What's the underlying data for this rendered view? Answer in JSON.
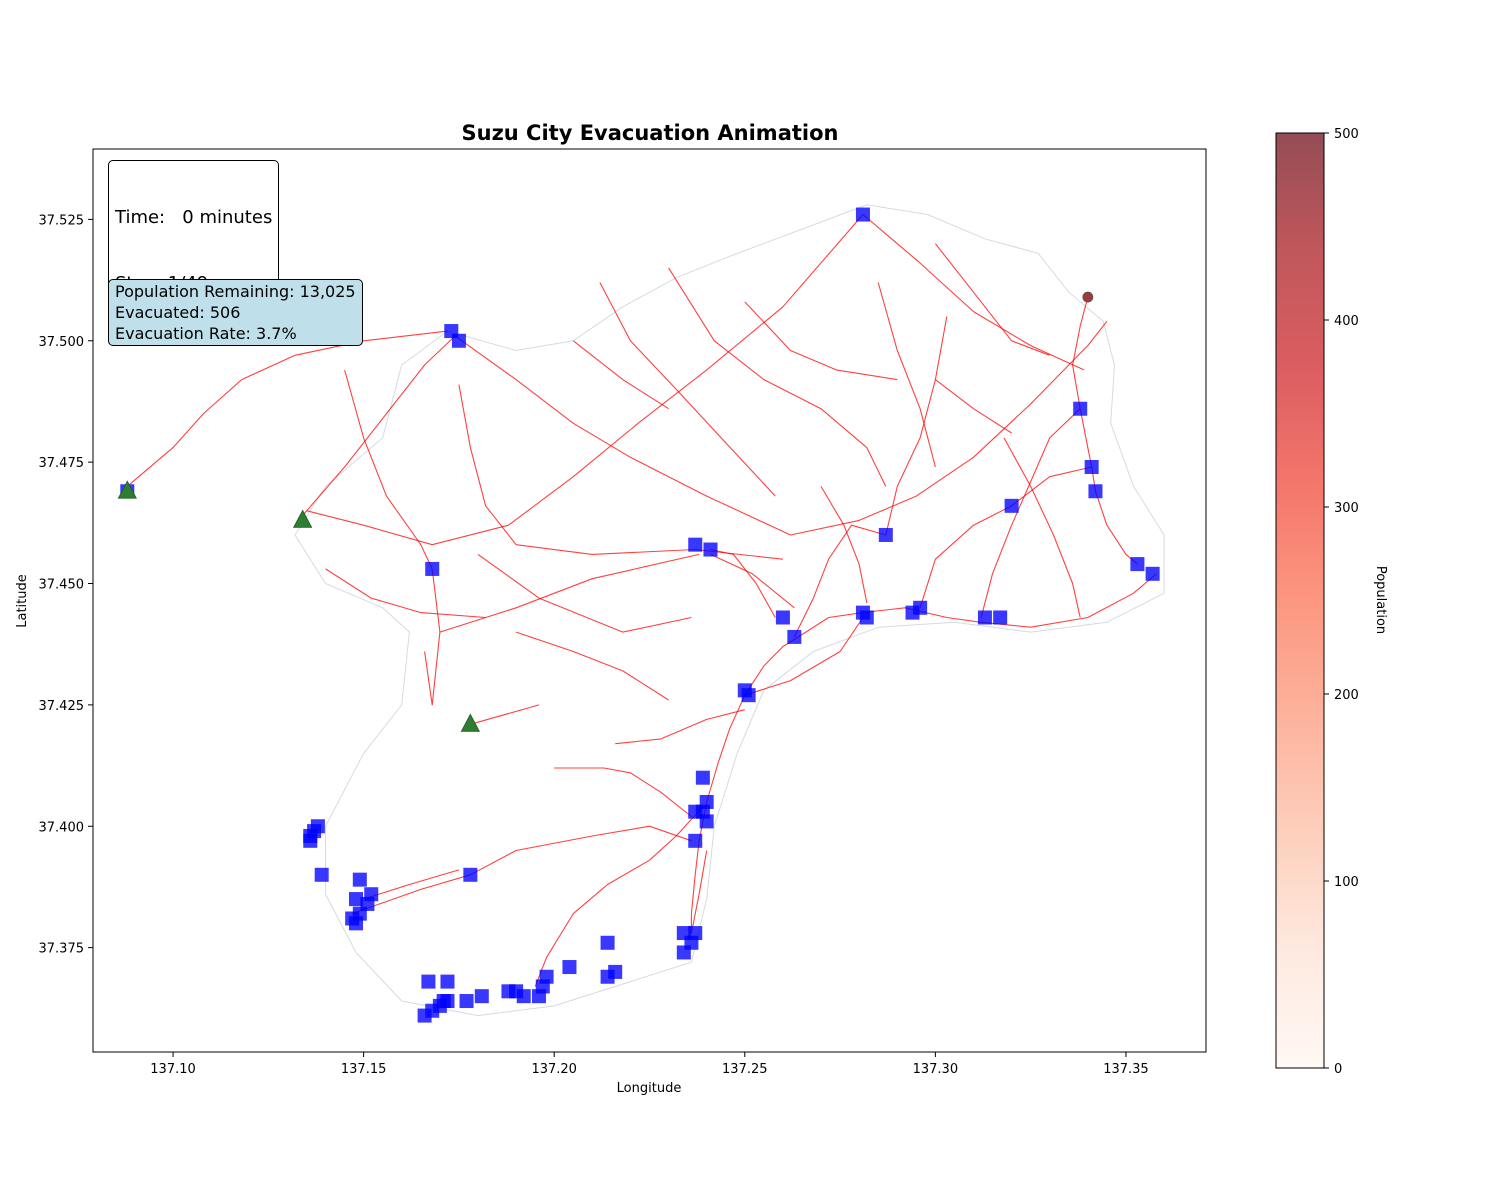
{
  "chart_data": {
    "type": "scatter",
    "title": "Suzu City Evacuation Animation",
    "xlabel": "Longitude",
    "ylabel": "Latitude",
    "xlim": [
      137.079,
      137.371
    ],
    "ylim": [
      37.3535,
      37.5395
    ],
    "x_ticks": [
      137.1,
      137.15,
      137.2,
      137.25,
      137.3,
      137.35
    ],
    "x_tick_labels": [
      "137.10",
      "137.15",
      "137.20",
      "137.25",
      "137.30",
      "137.35"
    ],
    "y_ticks": [
      37.375,
      37.4,
      37.425,
      37.45,
      37.475,
      37.5,
      37.525
    ],
    "y_tick_labels": [
      "37.375",
      "37.400",
      "37.425",
      "37.450",
      "37.475",
      "37.500",
      "37.525"
    ],
    "grid": false,
    "colorbar": {
      "label": "Population",
      "range": [
        0,
        500
      ],
      "ticks": [
        0,
        100,
        200,
        300,
        400,
        500
      ],
      "tick_labels": [
        "0",
        "100",
        "200",
        "300",
        "400",
        "500"
      ],
      "colormap": "Reds"
    },
    "colors": {
      "roads": "#ff0000",
      "shelters": "#0000ff",
      "exits": "#2e7d32",
      "population_point": "#a03a3a",
      "region_outline": "#d4dbe2"
    },
    "road_network": [
      [
        [
          137.088,
          37.47
        ],
        [
          137.1,
          37.478
        ],
        [
          137.108,
          37.485
        ],
        [
          137.118,
          37.492
        ],
        [
          137.132,
          37.497
        ],
        [
          137.15,
          37.5
        ],
        [
          137.172,
          37.502
        ]
      ],
      [
        [
          137.134,
          37.464
        ],
        [
          137.145,
          37.474
        ],
        [
          137.156,
          37.485
        ],
        [
          137.166,
          37.495
        ],
        [
          137.174,
          37.501
        ]
      ],
      [
        [
          137.174,
          37.501
        ],
        [
          137.19,
          37.492
        ],
        [
          137.205,
          37.483
        ],
        [
          137.22,
          37.476
        ],
        [
          137.24,
          37.468
        ],
        [
          137.262,
          37.46
        ],
        [
          137.28,
          37.463
        ],
        [
          137.295,
          37.468
        ],
        [
          137.31,
          37.476
        ],
        [
          137.325,
          37.487
        ],
        [
          137.34,
          37.499
        ],
        [
          137.345,
          37.504
        ]
      ],
      [
        [
          137.135,
          37.465
        ],
        [
          137.15,
          37.462
        ],
        [
          137.168,
          37.458
        ],
        [
          137.188,
          37.462
        ],
        [
          137.205,
          37.472
        ],
        [
          137.222,
          37.483
        ],
        [
          137.24,
          37.494
        ],
        [
          137.26,
          37.507
        ],
        [
          137.281,
          37.526
        ]
      ],
      [
        [
          137.281,
          37.526
        ],
        [
          137.296,
          37.516
        ],
        [
          137.31,
          37.506
        ],
        [
          137.325,
          37.499
        ],
        [
          137.339,
          37.494
        ]
      ],
      [
        [
          137.145,
          37.494
        ],
        [
          137.15,
          37.48
        ],
        [
          137.156,
          37.468
        ],
        [
          137.165,
          37.458
        ],
        [
          137.168,
          37.453
        ]
      ],
      [
        [
          137.175,
          37.491
        ],
        [
          137.178,
          37.478
        ],
        [
          137.182,
          37.466
        ],
        [
          137.19,
          37.458
        ],
        [
          137.21,
          37.456
        ],
        [
          137.237,
          37.457
        ],
        [
          137.26,
          37.455
        ]
      ],
      [
        [
          137.168,
          37.453
        ],
        [
          137.17,
          37.44
        ],
        [
          137.168,
          37.425
        ],
        [
          137.166,
          37.436
        ]
      ],
      [
        [
          137.17,
          37.44
        ],
        [
          137.19,
          37.445
        ],
        [
          137.21,
          37.451
        ],
        [
          137.238,
          37.456
        ]
      ],
      [
        [
          137.18,
          37.456
        ],
        [
          137.196,
          37.447
        ],
        [
          137.218,
          37.44
        ],
        [
          137.236,
          37.443
        ]
      ],
      [
        [
          137.14,
          37.453
        ],
        [
          137.152,
          37.447
        ],
        [
          137.165,
          37.444
        ],
        [
          137.182,
          37.443
        ]
      ],
      [
        [
          137.19,
          37.44
        ],
        [
          137.205,
          37.436
        ],
        [
          137.218,
          37.432
        ],
        [
          137.23,
          37.426
        ]
      ],
      [
        [
          137.241,
          37.456
        ],
        [
          137.252,
          37.452
        ],
        [
          137.263,
          37.445
        ]
      ],
      [
        [
          137.25,
          37.427
        ],
        [
          137.255,
          37.433
        ],
        [
          137.26,
          37.437
        ],
        [
          137.266,
          37.44
        ],
        [
          137.272,
          37.443
        ],
        [
          137.281,
          37.444
        ],
        [
          137.292,
          37.445
        ],
        [
          137.303,
          37.443
        ],
        [
          137.312,
          37.442
        ],
        [
          137.325,
          37.441
        ],
        [
          137.34,
          37.443
        ],
        [
          137.352,
          37.448
        ],
        [
          137.358,
          37.452
        ]
      ],
      [
        [
          137.25,
          37.427
        ],
        [
          137.246,
          37.42
        ],
        [
          137.243,
          37.413
        ],
        [
          137.24,
          37.405
        ],
        [
          137.238,
          37.397
        ],
        [
          137.237,
          37.39
        ],
        [
          137.236,
          37.382
        ],
        [
          137.236,
          37.378
        ]
      ],
      [
        [
          137.239,
          37.404
        ],
        [
          137.232,
          37.398
        ],
        [
          137.225,
          37.393
        ],
        [
          137.214,
          37.388
        ],
        [
          137.205,
          37.382
        ],
        [
          137.198,
          37.373
        ],
        [
          137.195,
          37.367
        ]
      ],
      [
        [
          137.236,
          37.402
        ],
        [
          137.228,
          37.407
        ],
        [
          137.22,
          37.411
        ],
        [
          137.213,
          37.412
        ],
        [
          137.2,
          37.412
        ]
      ],
      [
        [
          137.147,
          37.382
        ],
        [
          137.165,
          37.387
        ],
        [
          137.178,
          37.39
        ],
        [
          137.19,
          37.395
        ],
        [
          137.21,
          37.398
        ],
        [
          137.225,
          37.4
        ],
        [
          137.236,
          37.397
        ]
      ],
      [
        [
          137.15,
          37.385
        ],
        [
          137.162,
          37.388
        ],
        [
          137.175,
          37.391
        ]
      ],
      [
        [
          137.178,
          37.421
        ],
        [
          137.196,
          37.425
        ]
      ],
      [
        [
          137.263,
          37.439
        ],
        [
          137.268,
          37.447
        ],
        [
          137.272,
          37.455
        ],
        [
          137.278,
          37.462
        ],
        [
          137.287,
          37.46
        ]
      ],
      [
        [
          137.287,
          37.46
        ],
        [
          137.29,
          37.47
        ],
        [
          137.296,
          37.48
        ],
        [
          137.3,
          37.492
        ],
        [
          137.303,
          37.505
        ]
      ],
      [
        [
          137.296,
          37.445
        ],
        [
          137.3,
          37.455
        ],
        [
          137.31,
          37.462
        ],
        [
          137.32,
          37.466
        ],
        [
          137.33,
          37.472
        ],
        [
          137.341,
          37.474
        ]
      ],
      [
        [
          137.338,
          37.486
        ],
        [
          137.34,
          37.478
        ],
        [
          137.341,
          37.474
        ],
        [
          137.342,
          37.469
        ],
        [
          137.345,
          37.462
        ],
        [
          137.35,
          37.456
        ],
        [
          137.353,
          37.454
        ]
      ],
      [
        [
          137.312,
          37.443
        ],
        [
          137.315,
          37.452
        ],
        [
          137.32,
          37.462
        ],
        [
          137.325,
          37.471
        ],
        [
          137.33,
          37.48
        ],
        [
          137.338,
          37.486
        ]
      ],
      [
        [
          137.338,
          37.486
        ],
        [
          137.336,
          37.495
        ],
        [
          137.338,
          37.503
        ],
        [
          137.34,
          37.509
        ]
      ],
      [
        [
          137.25,
          37.427
        ],
        [
          137.262,
          37.43
        ],
        [
          137.275,
          37.436
        ],
        [
          137.281,
          37.443
        ]
      ],
      [
        [
          137.258,
          37.443
        ],
        [
          137.253,
          37.45
        ],
        [
          137.247,
          37.456
        ],
        [
          137.241,
          37.457
        ]
      ],
      [
        [
          137.285,
          37.512
        ],
        [
          137.29,
          37.498
        ],
        [
          137.296,
          37.486
        ],
        [
          137.3,
          37.474
        ]
      ],
      [
        [
          137.23,
          37.515
        ],
        [
          137.242,
          37.5
        ],
        [
          137.255,
          37.492
        ],
        [
          137.27,
          37.486
        ],
        [
          137.282,
          37.478
        ],
        [
          137.287,
          37.47
        ]
      ],
      [
        [
          137.212,
          37.512
        ],
        [
          137.22,
          37.5
        ],
        [
          137.232,
          37.49
        ],
        [
          137.245,
          37.479
        ],
        [
          137.258,
          37.468
        ]
      ],
      [
        [
          137.25,
          37.508
        ],
        [
          137.262,
          37.498
        ],
        [
          137.274,
          37.494
        ],
        [
          137.29,
          37.492
        ]
      ],
      [
        [
          137.205,
          37.5
        ],
        [
          137.218,
          37.492
        ],
        [
          137.23,
          37.486
        ]
      ],
      [
        [
          137.3,
          37.52
        ],
        [
          137.31,
          37.51
        ],
        [
          137.32,
          37.5
        ],
        [
          137.33,
          37.497
        ]
      ],
      [
        [
          137.318,
          37.48
        ],
        [
          137.325,
          37.47
        ],
        [
          137.331,
          37.46
        ],
        [
          137.336,
          37.45
        ],
        [
          137.338,
          37.443
        ]
      ],
      [
        [
          137.3,
          37.492
        ],
        [
          137.31,
          37.486
        ],
        [
          137.32,
          37.481
        ]
      ],
      [
        [
          137.27,
          37.47
        ],
        [
          137.276,
          37.462
        ],
        [
          137.28,
          37.454
        ],
        [
          137.282,
          37.446
        ]
      ],
      [
        [
          137.236,
          37.378
        ],
        [
          137.238,
          37.386
        ],
        [
          137.24,
          37.395
        ]
      ],
      [
        [
          137.25,
          37.424
        ],
        [
          137.24,
          37.422
        ],
        [
          137.228,
          37.418
        ],
        [
          137.216,
          37.417
        ]
      ]
    ],
    "shelters": [
      [
        137.281,
        37.526
      ],
      [
        137.173,
        37.502
      ],
      [
        137.175,
        37.5
      ],
      [
        137.088,
        37.469
      ],
      [
        137.338,
        37.486
      ],
      [
        137.341,
        37.474
      ],
      [
        137.342,
        37.469
      ],
      [
        137.32,
        37.466
      ],
      [
        137.287,
        37.46
      ],
      [
        137.237,
        37.458
      ],
      [
        137.241,
        37.457
      ],
      [
        137.168,
        37.453
      ],
      [
        137.353,
        37.454
      ],
      [
        137.357,
        37.452
      ],
      [
        137.26,
        37.443
      ],
      [
        137.263,
        37.439
      ],
      [
        137.281,
        37.444
      ],
      [
        137.282,
        37.443
      ],
      [
        137.294,
        37.444
      ],
      [
        137.296,
        37.445
      ],
      [
        137.313,
        37.443
      ],
      [
        137.317,
        37.443
      ],
      [
        137.251,
        37.427
      ],
      [
        137.25,
        37.428
      ],
      [
        137.239,
        37.41
      ],
      [
        137.24,
        37.405
      ],
      [
        137.239,
        37.403
      ],
      [
        137.237,
        37.403
      ],
      [
        137.24,
        37.401
      ],
      [
        137.237,
        37.397
      ],
      [
        137.138,
        37.4
      ],
      [
        137.137,
        37.399
      ],
      [
        137.136,
        37.398
      ],
      [
        137.136,
        37.397
      ],
      [
        137.139,
        37.39
      ],
      [
        137.149,
        37.389
      ],
      [
        137.178,
        37.39
      ],
      [
        137.152,
        37.386
      ],
      [
        137.148,
        37.385
      ],
      [
        137.151,
        37.384
      ],
      [
        137.149,
        37.382
      ],
      [
        137.147,
        37.381
      ],
      [
        137.148,
        37.38
      ],
      [
        137.214,
        37.376
      ],
      [
        137.234,
        37.378
      ],
      [
        137.237,
        37.378
      ],
      [
        137.236,
        37.376
      ],
      [
        137.234,
        37.374
      ],
      [
        137.204,
        37.371
      ],
      [
        137.216,
        37.37
      ],
      [
        137.214,
        37.369
      ],
      [
        137.172,
        37.368
      ],
      [
        137.167,
        37.368
      ],
      [
        137.198,
        37.369
      ],
      [
        137.197,
        37.367
      ],
      [
        137.19,
        37.366
      ],
      [
        137.188,
        37.366
      ],
      [
        137.192,
        37.365
      ],
      [
        137.181,
        37.365
      ],
      [
        137.196,
        37.365
      ],
      [
        137.177,
        37.364
      ],
      [
        137.172,
        37.364
      ],
      [
        137.171,
        37.364
      ],
      [
        137.17,
        37.363
      ],
      [
        137.168,
        37.362
      ],
      [
        137.166,
        37.361
      ]
    ],
    "exits": [
      [
        137.088,
        37.469
      ],
      [
        137.134,
        37.463
      ],
      [
        137.178,
        37.421
      ]
    ],
    "population_points": [
      {
        "x": 137.34,
        "y": 37.509,
        "population": 450
      }
    ],
    "region_outline": [
      [
        137.172,
        37.502
      ],
      [
        137.19,
        37.498
      ],
      [
        137.205,
        37.5
      ],
      [
        137.218,
        37.507
      ],
      [
        137.232,
        37.513
      ],
      [
        137.248,
        37.518
      ],
      [
        137.265,
        37.523
      ],
      [
        137.282,
        37.528
      ],
      [
        137.298,
        37.526
      ],
      [
        137.313,
        37.521
      ],
      [
        137.327,
        37.518
      ],
      [
        137.335,
        37.51
      ],
      [
        137.344,
        37.504
      ],
      [
        137.347,
        37.495
      ],
      [
        137.346,
        37.483
      ],
      [
        137.352,
        37.47
      ],
      [
        137.36,
        37.46
      ],
      [
        137.36,
        37.448
      ],
      [
        137.345,
        37.442
      ],
      [
        137.325,
        37.44
      ],
      [
        137.305,
        37.442
      ],
      [
        137.285,
        37.441
      ],
      [
        137.268,
        37.436
      ],
      [
        137.255,
        37.428
      ],
      [
        137.248,
        37.415
      ],
      [
        137.242,
        37.4
      ],
      [
        137.24,
        37.385
      ],
      [
        137.236,
        37.372
      ],
      [
        137.22,
        37.368
      ],
      [
        137.2,
        37.363
      ],
      [
        137.18,
        37.361
      ],
      [
        137.16,
        37.364
      ],
      [
        137.148,
        37.374
      ],
      [
        137.14,
        37.386
      ],
      [
        137.14,
        37.4
      ],
      [
        137.15,
        37.415
      ],
      [
        137.16,
        37.425
      ],
      [
        137.162,
        37.44
      ],
      [
        137.155,
        37.445
      ],
      [
        137.14,
        37.45
      ],
      [
        137.132,
        37.46
      ],
      [
        137.14,
        37.47
      ],
      [
        137.155,
        37.48
      ],
      [
        137.16,
        37.495
      ],
      [
        137.172,
        37.502
      ]
    ]
  },
  "overlay": {
    "time_line": "Time:   0 minutes",
    "step_line": "Step: 1/49",
    "population_remaining": "Population Remaining: 13,025",
    "evacuated": "Evacuated: 506",
    "evacuation_rate": "Evacuation Rate: 3.7%"
  }
}
